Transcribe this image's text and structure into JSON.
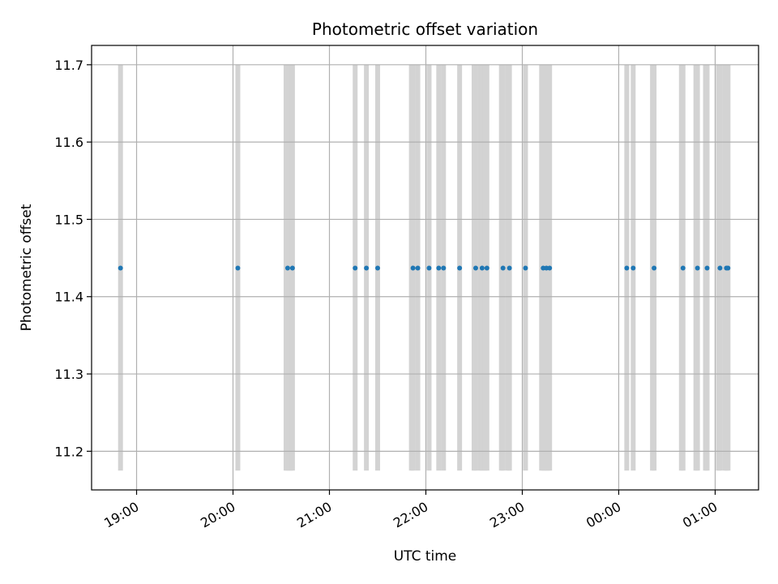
{
  "chart_data": {
    "type": "scatter",
    "title": "Photometric offset variation",
    "xlabel": "UTC time",
    "ylabel": "Photometric offset",
    "x_axis_type": "time",
    "xlim": [
      "18:32",
      "01:27"
    ],
    "ylim": [
      11.15,
      11.725
    ],
    "y_ticks": [
      11.2,
      11.3,
      11.4,
      11.5,
      11.6,
      11.7
    ],
    "y_tick_labels": [
      "11.2",
      "11.3",
      "11.4",
      "11.5",
      "11.6",
      "11.7"
    ],
    "x_ticks": [
      "19:00",
      "20:00",
      "21:00",
      "22:00",
      "23:00",
      "00:00",
      "01:00"
    ],
    "x_tick_labels": [
      "19:00",
      "20:00",
      "21:00",
      "22:00",
      "23:00",
      "00:00",
      "01:00"
    ],
    "grid": true,
    "series": [
      {
        "color": "#1f77b4",
        "marker": "point",
        "x": [
          "18:50",
          "20:03",
          "20:34",
          "20:37",
          "21:16",
          "21:23",
          "21:30",
          "21:52",
          "21:55",
          "22:02",
          "22:08",
          "22:11",
          "22:21",
          "22:31",
          "22:35",
          "22:38",
          "22:48",
          "22:52",
          "23:02",
          "23:13",
          "23:15",
          "23:17",
          "00:05",
          "00:09",
          "00:22",
          "00:40",
          "00:49",
          "00:55",
          "01:03",
          "01:07",
          "01:08"
        ],
        "y": [
          11.437,
          11.437,
          11.437,
          11.437,
          11.437,
          11.437,
          11.437,
          11.437,
          11.437,
          11.437,
          11.437,
          11.437,
          11.437,
          11.437,
          11.437,
          11.437,
          11.437,
          11.437,
          11.437,
          11.437,
          11.437,
          11.437,
          11.437,
          11.437,
          11.437,
          11.437,
          11.437,
          11.437,
          11.437,
          11.437,
          11.437
        ]
      }
    ],
    "vertical_bands": {
      "color": "#d3d3d3",
      "y_range": [
        11.175,
        11.7
      ],
      "x": [
        "18:50",
        "20:03",
        "20:33",
        "20:34",
        "20:35",
        "20:36",
        "20:37",
        "21:16",
        "21:23",
        "21:30",
        "21:51",
        "21:52",
        "21:55",
        "22:02",
        "22:08",
        "22:11",
        "22:21",
        "22:30",
        "22:31",
        "22:34",
        "22:35",
        "22:37",
        "22:38",
        "22:47",
        "22:48",
        "22:51",
        "22:52",
        "23:02",
        "23:12",
        "23:13",
        "23:14",
        "23:15",
        "23:16",
        "23:17",
        "00:05",
        "00:09",
        "00:21",
        "00:22",
        "00:39",
        "00:40",
        "00:48",
        "00:49",
        "00:54",
        "00:55",
        "01:02",
        "01:03",
        "01:06",
        "01:07",
        "01:08"
      ]
    }
  }
}
